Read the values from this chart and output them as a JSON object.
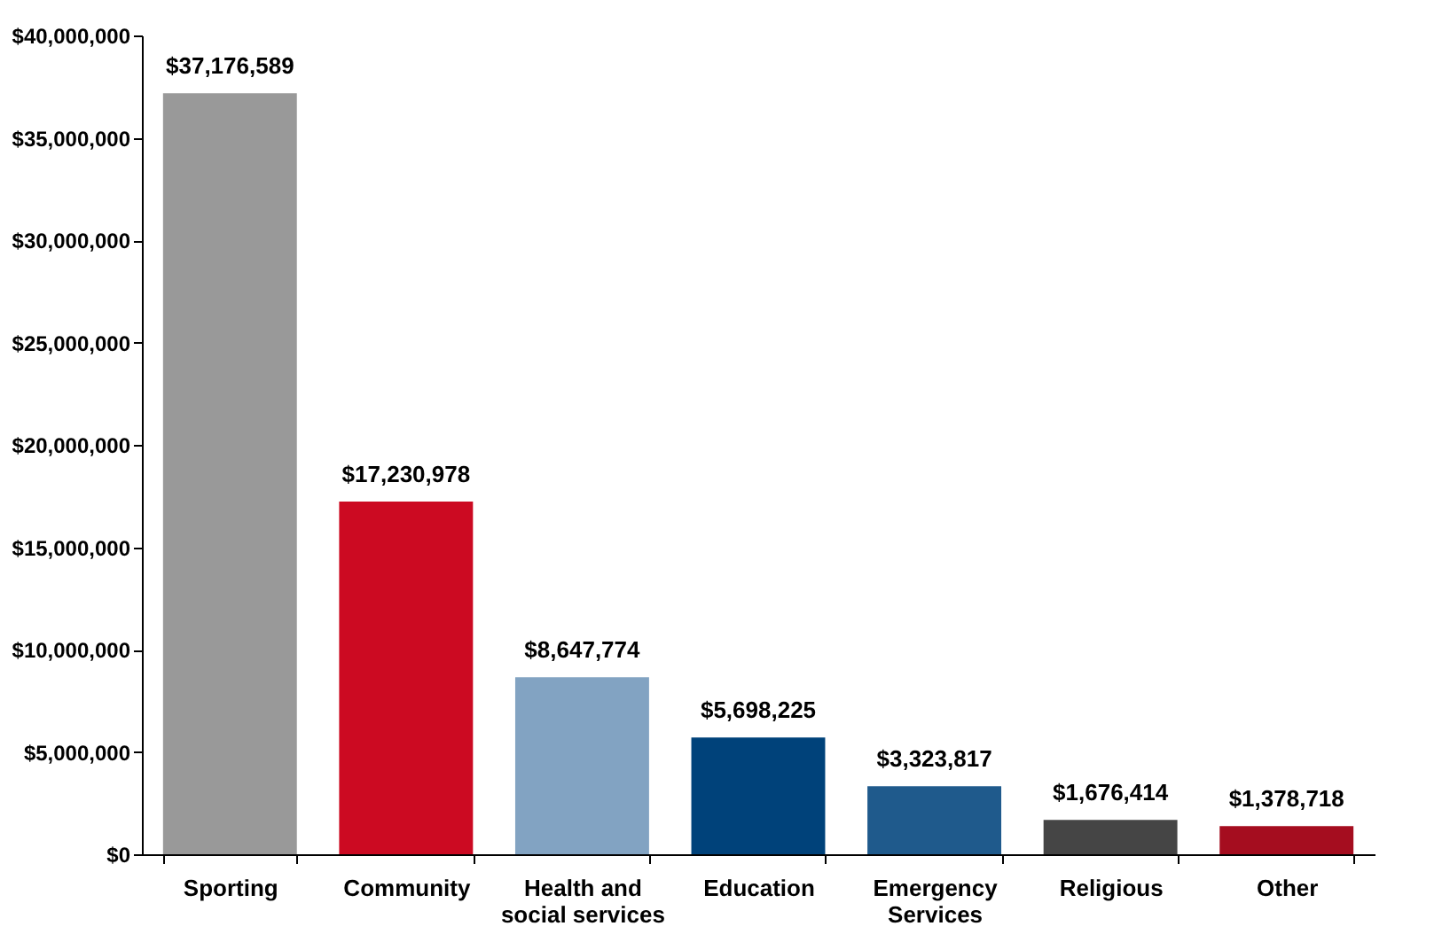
{
  "chart_data": {
    "type": "bar",
    "categories": [
      "Sporting",
      "Community",
      "Health and social services",
      "Education",
      "Emergency Services",
      "Religious",
      "Other"
    ],
    "values": [
      37176589,
      17230978,
      8647774,
      5698225,
      3323817,
      1676414,
      1378718
    ],
    "colors": [
      "#999999",
      "#cc0a22",
      "#82a3c2",
      "#00427a",
      "#1f5a8c",
      "#454545",
      "#a50d1f"
    ],
    "value_labels": [
      "$37,176,589",
      "$17,230,978",
      "$8,647,774",
      "$5,698,225",
      "$3,323,817",
      "$1,676,414",
      "$1,378,718"
    ],
    "ylim": [
      0,
      40000000
    ],
    "yticks": [
      {
        "value": 0,
        "label": "$0"
      },
      {
        "value": 5000000,
        "label": "$5,000,000"
      },
      {
        "value": 10000000,
        "label": "$10,000,000"
      },
      {
        "value": 15000000,
        "label": "$15,000,000"
      },
      {
        "value": 20000000,
        "label": "$20,000,000"
      },
      {
        "value": 25000000,
        "label": "$25,000,000"
      },
      {
        "value": 30000000,
        "label": "$30,000,000"
      },
      {
        "value": 35000000,
        "label": "$35,000,000"
      },
      {
        "value": 40000000,
        "label": "$40,000,000"
      }
    ],
    "grid": false
  }
}
